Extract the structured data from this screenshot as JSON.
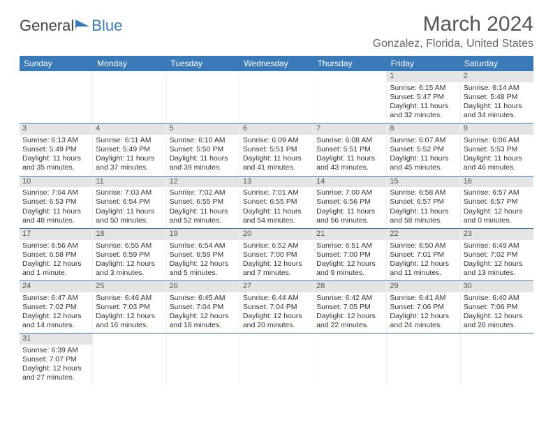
{
  "logo": {
    "part1": "General",
    "part2": "Blue"
  },
  "title": "March 2024",
  "location": "Gonzalez, Florida, United States",
  "colors": {
    "header_bg": "#3a7ab8",
    "header_text": "#ffffff",
    "daynum_bg": "#e4e4e4",
    "border": "#3a7ab8",
    "text": "#333333"
  },
  "day_names": [
    "Sunday",
    "Monday",
    "Tuesday",
    "Wednesday",
    "Thursday",
    "Friday",
    "Saturday"
  ],
  "weeks": [
    [
      {
        "n": "",
        "sr": "",
        "ss": "",
        "d1": "",
        "d2": ""
      },
      {
        "n": "",
        "sr": "",
        "ss": "",
        "d1": "",
        "d2": ""
      },
      {
        "n": "",
        "sr": "",
        "ss": "",
        "d1": "",
        "d2": ""
      },
      {
        "n": "",
        "sr": "",
        "ss": "",
        "d1": "",
        "d2": ""
      },
      {
        "n": "",
        "sr": "",
        "ss": "",
        "d1": "",
        "d2": ""
      },
      {
        "n": "1",
        "sr": "Sunrise: 6:15 AM",
        "ss": "Sunset: 5:47 PM",
        "d1": "Daylight: 11 hours",
        "d2": "and 32 minutes."
      },
      {
        "n": "2",
        "sr": "Sunrise: 6:14 AM",
        "ss": "Sunset: 5:48 PM",
        "d1": "Daylight: 11 hours",
        "d2": "and 34 minutes."
      }
    ],
    [
      {
        "n": "3",
        "sr": "Sunrise: 6:13 AM",
        "ss": "Sunset: 5:49 PM",
        "d1": "Daylight: 11 hours",
        "d2": "and 35 minutes."
      },
      {
        "n": "4",
        "sr": "Sunrise: 6:11 AM",
        "ss": "Sunset: 5:49 PM",
        "d1": "Daylight: 11 hours",
        "d2": "and 37 minutes."
      },
      {
        "n": "5",
        "sr": "Sunrise: 6:10 AM",
        "ss": "Sunset: 5:50 PM",
        "d1": "Daylight: 11 hours",
        "d2": "and 39 minutes."
      },
      {
        "n": "6",
        "sr": "Sunrise: 6:09 AM",
        "ss": "Sunset: 5:51 PM",
        "d1": "Daylight: 11 hours",
        "d2": "and 41 minutes."
      },
      {
        "n": "7",
        "sr": "Sunrise: 6:08 AM",
        "ss": "Sunset: 5:51 PM",
        "d1": "Daylight: 11 hours",
        "d2": "and 43 minutes."
      },
      {
        "n": "8",
        "sr": "Sunrise: 6:07 AM",
        "ss": "Sunset: 5:52 PM",
        "d1": "Daylight: 11 hours",
        "d2": "and 45 minutes."
      },
      {
        "n": "9",
        "sr": "Sunrise: 6:06 AM",
        "ss": "Sunset: 5:53 PM",
        "d1": "Daylight: 11 hours",
        "d2": "and 46 minutes."
      }
    ],
    [
      {
        "n": "10",
        "sr": "Sunrise: 7:04 AM",
        "ss": "Sunset: 6:53 PM",
        "d1": "Daylight: 11 hours",
        "d2": "and 48 minutes."
      },
      {
        "n": "11",
        "sr": "Sunrise: 7:03 AM",
        "ss": "Sunset: 6:54 PM",
        "d1": "Daylight: 11 hours",
        "d2": "and 50 minutes."
      },
      {
        "n": "12",
        "sr": "Sunrise: 7:02 AM",
        "ss": "Sunset: 6:55 PM",
        "d1": "Daylight: 11 hours",
        "d2": "and 52 minutes."
      },
      {
        "n": "13",
        "sr": "Sunrise: 7:01 AM",
        "ss": "Sunset: 6:55 PM",
        "d1": "Daylight: 11 hours",
        "d2": "and 54 minutes."
      },
      {
        "n": "14",
        "sr": "Sunrise: 7:00 AM",
        "ss": "Sunset: 6:56 PM",
        "d1": "Daylight: 11 hours",
        "d2": "and 56 minutes."
      },
      {
        "n": "15",
        "sr": "Sunrise: 6:58 AM",
        "ss": "Sunset: 6:57 PM",
        "d1": "Daylight: 11 hours",
        "d2": "and 58 minutes."
      },
      {
        "n": "16",
        "sr": "Sunrise: 6:57 AM",
        "ss": "Sunset: 6:57 PM",
        "d1": "Daylight: 12 hours",
        "d2": "and 0 minutes."
      }
    ],
    [
      {
        "n": "17",
        "sr": "Sunrise: 6:56 AM",
        "ss": "Sunset: 6:58 PM",
        "d1": "Daylight: 12 hours",
        "d2": "and 1 minute."
      },
      {
        "n": "18",
        "sr": "Sunrise: 6:55 AM",
        "ss": "Sunset: 6:59 PM",
        "d1": "Daylight: 12 hours",
        "d2": "and 3 minutes."
      },
      {
        "n": "19",
        "sr": "Sunrise: 6:54 AM",
        "ss": "Sunset: 6:59 PM",
        "d1": "Daylight: 12 hours",
        "d2": "and 5 minutes."
      },
      {
        "n": "20",
        "sr": "Sunrise: 6:52 AM",
        "ss": "Sunset: 7:00 PM",
        "d1": "Daylight: 12 hours",
        "d2": "and 7 minutes."
      },
      {
        "n": "21",
        "sr": "Sunrise: 6:51 AM",
        "ss": "Sunset: 7:00 PM",
        "d1": "Daylight: 12 hours",
        "d2": "and 9 minutes."
      },
      {
        "n": "22",
        "sr": "Sunrise: 6:50 AM",
        "ss": "Sunset: 7:01 PM",
        "d1": "Daylight: 12 hours",
        "d2": "and 11 minutes."
      },
      {
        "n": "23",
        "sr": "Sunrise: 6:49 AM",
        "ss": "Sunset: 7:02 PM",
        "d1": "Daylight: 12 hours",
        "d2": "and 13 minutes."
      }
    ],
    [
      {
        "n": "24",
        "sr": "Sunrise: 6:47 AM",
        "ss": "Sunset: 7:02 PM",
        "d1": "Daylight: 12 hours",
        "d2": "and 14 minutes."
      },
      {
        "n": "25",
        "sr": "Sunrise: 6:46 AM",
        "ss": "Sunset: 7:03 PM",
        "d1": "Daylight: 12 hours",
        "d2": "and 16 minutes."
      },
      {
        "n": "26",
        "sr": "Sunrise: 6:45 AM",
        "ss": "Sunset: 7:04 PM",
        "d1": "Daylight: 12 hours",
        "d2": "and 18 minutes."
      },
      {
        "n": "27",
        "sr": "Sunrise: 6:44 AM",
        "ss": "Sunset: 7:04 PM",
        "d1": "Daylight: 12 hours",
        "d2": "and 20 minutes."
      },
      {
        "n": "28",
        "sr": "Sunrise: 6:42 AM",
        "ss": "Sunset: 7:05 PM",
        "d1": "Daylight: 12 hours",
        "d2": "and 22 minutes."
      },
      {
        "n": "29",
        "sr": "Sunrise: 6:41 AM",
        "ss": "Sunset: 7:06 PM",
        "d1": "Daylight: 12 hours",
        "d2": "and 24 minutes."
      },
      {
        "n": "30",
        "sr": "Sunrise: 6:40 AM",
        "ss": "Sunset: 7:06 PM",
        "d1": "Daylight: 12 hours",
        "d2": "and 26 minutes."
      }
    ],
    [
      {
        "n": "31",
        "sr": "Sunrise: 6:39 AM",
        "ss": "Sunset: 7:07 PM",
        "d1": "Daylight: 12 hours",
        "d2": "and 27 minutes."
      },
      {
        "n": "",
        "sr": "",
        "ss": "",
        "d1": "",
        "d2": ""
      },
      {
        "n": "",
        "sr": "",
        "ss": "",
        "d1": "",
        "d2": ""
      },
      {
        "n": "",
        "sr": "",
        "ss": "",
        "d1": "",
        "d2": ""
      },
      {
        "n": "",
        "sr": "",
        "ss": "",
        "d1": "",
        "d2": ""
      },
      {
        "n": "",
        "sr": "",
        "ss": "",
        "d1": "",
        "d2": ""
      },
      {
        "n": "",
        "sr": "",
        "ss": "",
        "d1": "",
        "d2": ""
      }
    ]
  ]
}
